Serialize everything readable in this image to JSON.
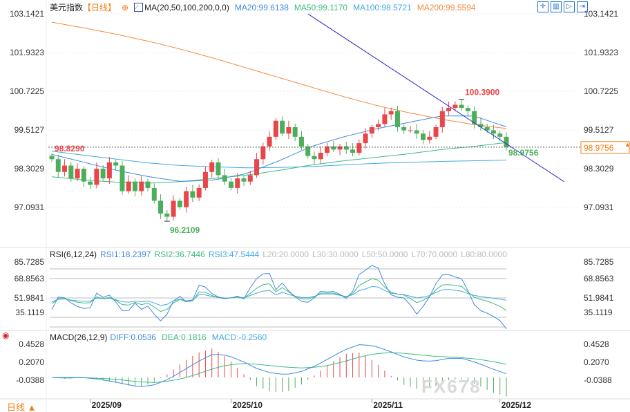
{
  "header": {
    "title": "美元指数",
    "period": "【日线】",
    "ma_label": "MA(20,50,100,200,0,0)",
    "ma20": "MA20:99.6138",
    "ma50": "MA50:99.1170",
    "ma100": "MA100:98.5721",
    "ma200": "MA200:99.5594"
  },
  "rsi_header": {
    "label": "RSI(6,12,24)",
    "rsi1": "RSI1:18.2397",
    "rsi2": "RSI2:36.7446",
    "rsi3": "RSI3:47.5444",
    "l20": "L20:20.0000",
    "l30": "L30:30.0000",
    "l50": "L50:50.0000",
    "l70": "L70:70.0000",
    "l80": "L80:80.0000"
  },
  "macd_header": {
    "label": "MACD(26,12,9)",
    "diff": "DIFF:0.0536",
    "dea": "DEA:0.1816",
    "macd": "MACD:-0.2560"
  },
  "footer": {
    "period": "日线 ▲",
    "watermark": "FX678"
  },
  "toolbar": [
    "crosshair-icon",
    "zoom-bars-icon",
    "play-icon",
    "exit-icon"
  ],
  "colors": {
    "up": "#e8464a",
    "down": "#4cae5a",
    "ma20": "#3f8ae0",
    "ma50": "#3cbb7e",
    "ma100": "#41a9e2",
    "ma200": "#f5893d",
    "trend": "#2424c8",
    "price_tag": "#f07d16"
  },
  "chart_data": [
    {
      "type": "candlestick",
      "title": "美元指数",
      "price_axis_ticks": [
        "103.1421",
        "101.9323",
        "100.7225",
        "99.5127",
        "98.3029",
        "97.0931"
      ],
      "ylim": [
        96.0,
        103.3
      ],
      "x_ticks": [
        {
          "label": "2025/09",
          "index": 6
        },
        {
          "label": "2025/10",
          "index": 28
        },
        {
          "label": "2025/11",
          "index": 50
        },
        {
          "label": "2025/12",
          "index": 70
        }
      ],
      "first_open": 98.7,
      "closes": [
        98.6,
        98.2,
        98.4,
        98.0,
        98.3,
        97.9,
        97.8,
        98.3,
        98.0,
        98.5,
        98.4,
        97.6,
        97.9,
        97.6,
        97.9,
        97.7,
        97.3,
        96.9,
        96.8,
        97.3,
        97.1,
        97.6,
        97.4,
        97.7,
        98.2,
        98.5,
        98.1,
        97.9,
        97.7,
        98.0,
        97.9,
        98.1,
        98.6,
        99.0,
        99.3,
        99.8,
        99.4,
        99.6,
        99.3,
        99.0,
        98.7,
        98.6,
        98.8,
        99.0,
        98.9,
        99.0,
        98.9,
        98.8,
        99.1,
        99.4,
        99.6,
        99.7,
        100.0,
        100.1,
        99.6,
        99.5,
        99.5,
        99.4,
        99.2,
        99.3,
        99.6,
        100.1,
        100.2,
        100.3,
        100.2,
        100.1,
        99.7,
        99.6,
        99.5,
        99.4,
        99.3,
        98.98
      ],
      "ma20": [
        98.75,
        98.5,
        98.25,
        98.05,
        97.9,
        97.95,
        98.15,
        98.55,
        99.0,
        99.3,
        99.55,
        99.75,
        99.95,
        99.95,
        99.61
      ],
      "ma50": [
        98.05,
        97.95,
        97.88,
        97.85,
        97.9,
        98.0,
        98.1,
        98.25,
        98.42,
        98.55,
        98.66,
        98.77,
        98.9,
        99.0,
        99.12
      ],
      "ma100": [
        98.85,
        98.72,
        98.6,
        98.48,
        98.4,
        98.36,
        98.33,
        98.34,
        98.37,
        98.42,
        98.47,
        98.5,
        98.53,
        98.55,
        98.57
      ],
      "ma200": [
        102.88,
        102.7,
        102.5,
        102.28,
        102.03,
        101.75,
        101.45,
        101.15,
        100.85,
        100.55,
        100.28,
        100.05,
        99.85,
        99.68,
        99.56
      ],
      "trend_line": [
        {
          "index": 40,
          "price": 103.14
        },
        {
          "index": 80,
          "price": 97.9
        }
      ],
      "annotations": {
        "high": "100.3900",
        "low": "96.2109",
        "left": "98.8290",
        "last": "98.9756",
        "last_tag": "98.9756"
      }
    },
    {
      "type": "line",
      "title": "RSI(6,12,24)",
      "ticks": [
        "85.7285",
        "68.8563",
        "51.9841",
        "35.1119"
      ],
      "levels": [
        20,
        30,
        50,
        70,
        80
      ],
      "series": [
        {
          "name": "RSI1",
          "values": [
            38,
            53,
            49,
            42,
            40,
            37,
            55,
            50,
            54,
            40,
            33,
            46,
            38,
            42,
            30,
            24,
            44,
            53,
            46,
            48,
            68,
            57,
            52,
            49,
            50,
            52,
            48,
            68,
            72,
            80,
            58,
            66,
            55,
            49,
            44,
            48,
            57,
            56,
            57,
            52,
            47,
            73,
            78,
            84,
            80,
            57,
            50,
            52,
            44,
            33,
            43,
            55,
            73,
            75,
            72,
            70,
            55,
            38,
            36,
            32,
            28,
            18
          ]
        },
        {
          "name": "RSI2",
          "values": [
            44,
            50,
            49,
            46,
            45,
            44,
            51,
            49,
            51,
            45,
            41,
            46,
            43,
            45,
            39,
            34,
            43,
            49,
            46,
            47,
            59,
            54,
            51,
            49,
            50,
            51,
            49,
            58,
            62,
            67,
            56,
            61,
            55,
            50,
            48,
            50,
            55,
            55,
            55,
            52,
            50,
            62,
            66,
            70,
            68,
            58,
            54,
            54,
            50,
            45,
            48,
            53,
            63,
            64,
            63,
            62,
            55,
            49,
            48,
            45,
            42,
            37
          ]
        },
        {
          "name": "RSI3",
          "values": [
            46,
            49,
            49,
            47,
            47,
            46,
            50,
            49,
            50,
            47,
            45,
            47,
            46,
            47,
            44,
            41,
            46,
            49,
            47,
            48,
            55,
            52,
            51,
            50,
            50,
            51,
            50,
            54,
            56,
            59,
            53,
            56,
            53,
            51,
            50,
            51,
            54,
            54,
            54,
            52,
            51,
            57,
            59,
            62,
            61,
            56,
            54,
            54,
            52,
            50,
            51,
            53,
            58,
            59,
            58,
            57,
            54,
            52,
            51,
            50,
            49,
            47.5
          ]
        }
      ]
    },
    {
      "type": "bar+line",
      "title": "MACD(26,12,9)",
      "ticks": [
        "0.4528",
        "0.2070",
        "-0.0388"
      ],
      "series": [
        {
          "name": "DIFF",
          "values": [
            0.0,
            -0.01,
            -0.0,
            -0.02,
            -0.05,
            -0.09,
            -0.13,
            -0.1,
            -0.02,
            0.1,
            0.22,
            0.32,
            0.3,
            0.22,
            0.12,
            0.06,
            0.04,
            0.08,
            0.16,
            0.27,
            0.38,
            0.45,
            0.43,
            0.36,
            0.28,
            0.23,
            0.22,
            0.26,
            0.26,
            0.2,
            0.12,
            0.05
          ]
        },
        {
          "name": "DEA",
          "values": [
            0.0,
            -0.0,
            -0.0,
            -0.01,
            -0.02,
            -0.04,
            -0.06,
            -0.07,
            -0.05,
            -0.01,
            0.05,
            0.12,
            0.17,
            0.19,
            0.18,
            0.16,
            0.14,
            0.13,
            0.14,
            0.17,
            0.22,
            0.28,
            0.32,
            0.34,
            0.33,
            0.31,
            0.29,
            0.28,
            0.27,
            0.25,
            0.22,
            0.18
          ]
        }
      ]
    }
  ]
}
